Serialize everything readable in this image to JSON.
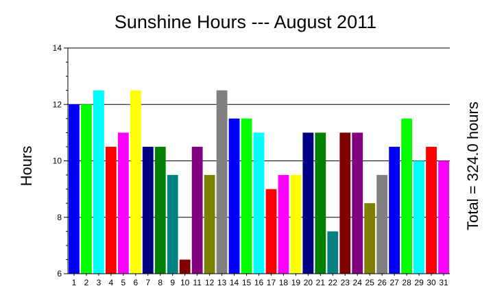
{
  "chart_data": {
    "type": "bar",
    "title": "Sunshine Hours --- August 2011",
    "ylabel": "Hours",
    "right_label": "Total  = 324.0 hours",
    "ylim": [
      6,
      14
    ],
    "y_ticks": [
      6,
      8,
      10,
      12,
      14
    ],
    "grid": "horizontal at major ticks",
    "categories": [
      "1",
      "2",
      "3",
      "4",
      "5",
      "6",
      "7",
      "8",
      "9",
      "10",
      "11",
      "12",
      "13",
      "14",
      "15",
      "16",
      "17",
      "18",
      "19",
      "20",
      "21",
      "22",
      "23",
      "24",
      "25",
      "26",
      "27",
      "28",
      "29",
      "30",
      "31"
    ],
    "values": [
      12.0,
      12.0,
      12.5,
      10.5,
      11.0,
      12.5,
      10.5,
      10.5,
      9.5,
      6.5,
      10.5,
      9.5,
      12.5,
      11.5,
      11.5,
      11.0,
      9.0,
      9.5,
      9.5,
      11.0,
      11.0,
      7.5,
      11.0,
      11.0,
      8.5,
      9.5,
      10.5,
      11.5,
      10.0,
      10.5,
      10.0
    ],
    "bar_colors": [
      "#0000ff",
      "#00ff00",
      "#00ffff",
      "#ff0000",
      "#ff00ff",
      "#ffff00",
      "#000080",
      "#008000",
      "#008080",
      "#800000",
      "#800080",
      "#808000",
      "#808080",
      "#0000ff",
      "#00ff00",
      "#00ffff",
      "#ff0000",
      "#ff00ff",
      "#ffff00",
      "#000080",
      "#008000",
      "#008080",
      "#800000",
      "#800080",
      "#808000",
      "#808080",
      "#0000ff",
      "#00ff00",
      "#00ffff",
      "#ff0000",
      "#ff00ff"
    ]
  }
}
